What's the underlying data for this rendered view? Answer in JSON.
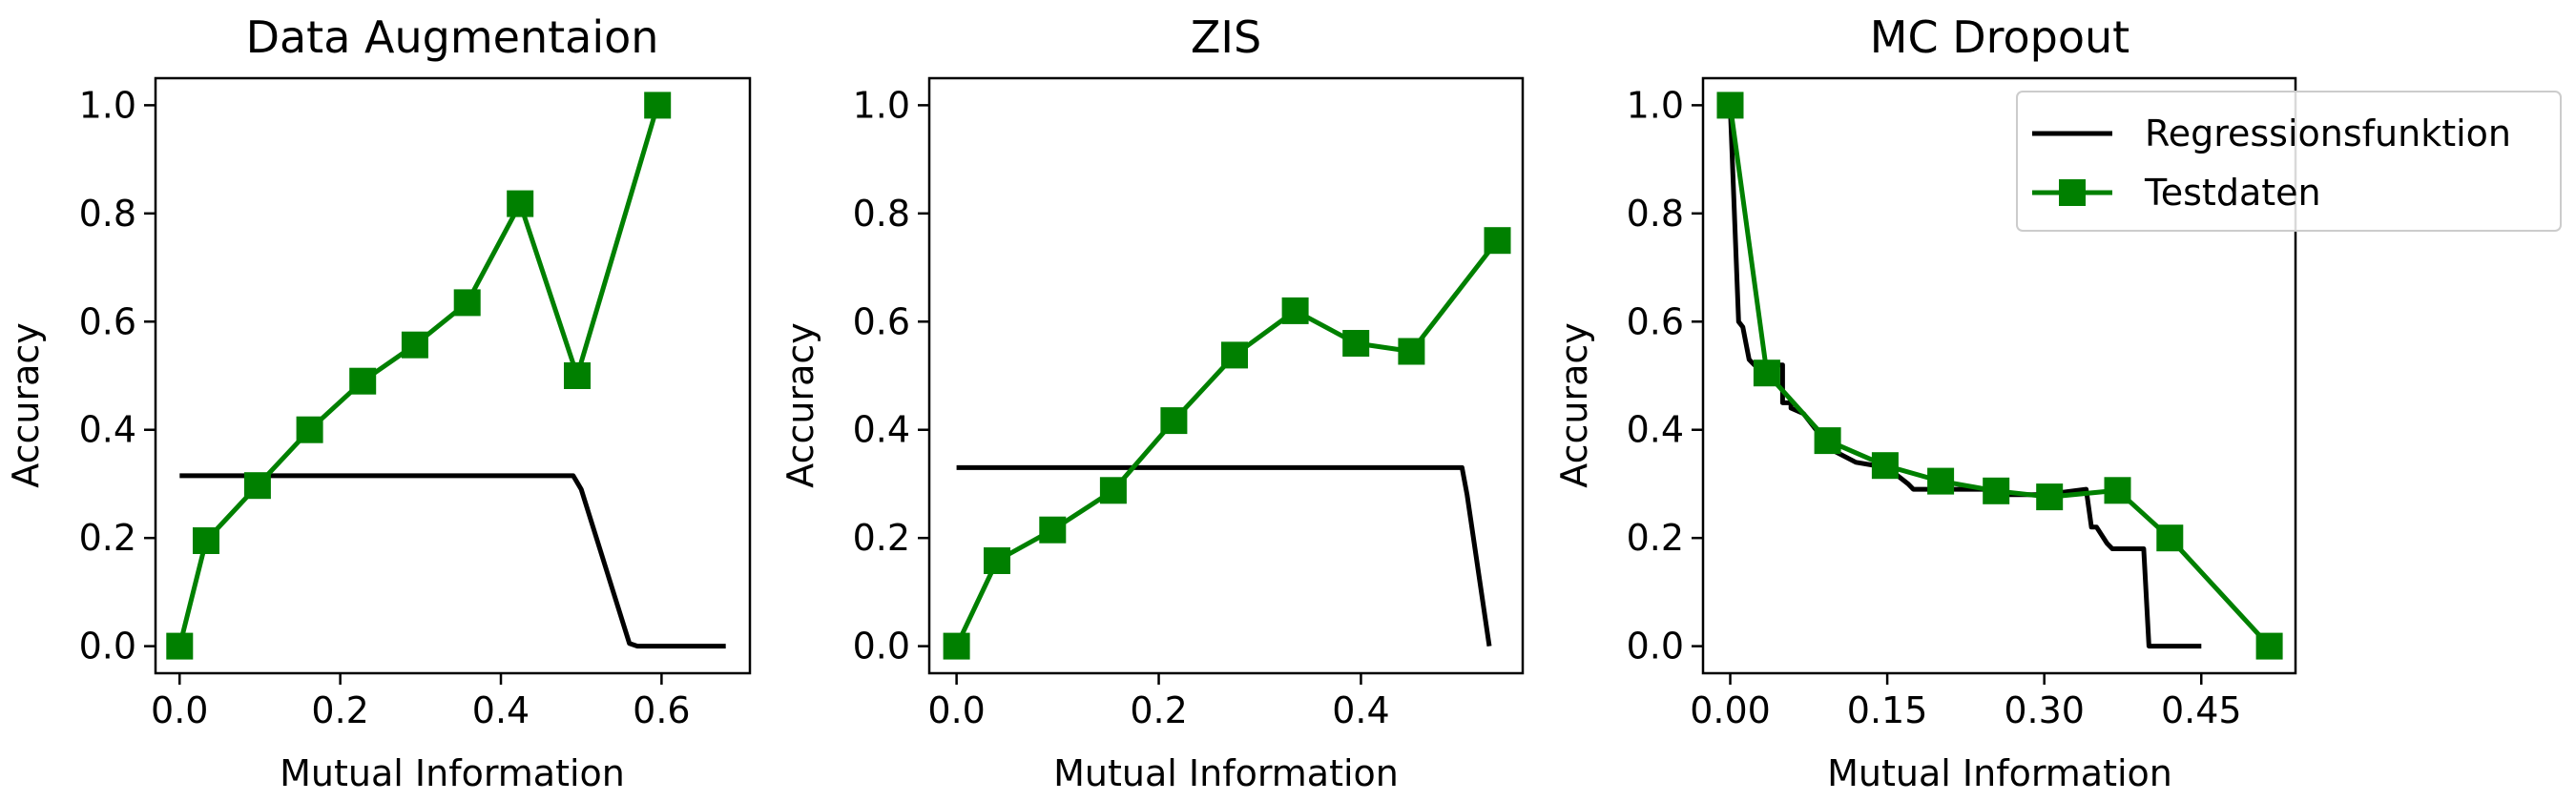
{
  "chart_data": [
    {
      "type": "line",
      "title": "Data Augmentaion",
      "xlabel": "Mutual Information",
      "ylabel": "Accuracy",
      "xlim": [
        -0.03,
        0.71
      ],
      "ylim": [
        -0.05,
        1.05
      ],
      "xticks": [
        0.0,
        0.2,
        0.4,
        0.6
      ],
      "xtick_labels": [
        "0.0",
        "0.2",
        "0.4",
        "0.6"
      ],
      "yticks": [
        0.0,
        0.2,
        0.4,
        0.6,
        0.8,
        1.0
      ],
      "ytick_labels": [
        "0.0",
        "0.2",
        "0.4",
        "0.6",
        "0.8",
        "1.0"
      ],
      "series": [
        {
          "name": "Regressionsfunktion",
          "color": "#000000",
          "marker": "none",
          "x": [
            0.0,
            0.49,
            0.5,
            0.56,
            0.57,
            0.68
          ],
          "y": [
            0.315,
            0.315,
            0.29,
            0.005,
            0.0,
            0.0
          ]
        },
        {
          "name": "Testdaten",
          "color": "#008000",
          "marker": "square",
          "x": [
            0.0,
            0.033,
            0.097,
            0.162,
            0.228,
            0.293,
            0.358,
            0.424,
            0.495,
            0.595
          ],
          "y": [
            0.0,
            0.195,
            0.297,
            0.4,
            0.49,
            0.557,
            0.635,
            0.818,
            0.5,
            1.0
          ]
        }
      ]
    },
    {
      "type": "line",
      "title": "ZIS",
      "xlabel": "Mutual Information",
      "ylabel": "Accuracy",
      "xlim": [
        -0.027,
        0.56
      ],
      "ylim": [
        -0.05,
        1.05
      ],
      "xticks": [
        0.0,
        0.2,
        0.4
      ],
      "xtick_labels": [
        "0.0",
        "0.2",
        "0.4"
      ],
      "yticks": [
        0.0,
        0.2,
        0.4,
        0.6,
        0.8,
        1.0
      ],
      "ytick_labels": [
        "0.0",
        "0.2",
        "0.4",
        "0.6",
        "0.8",
        "1.0"
      ],
      "series": [
        {
          "name": "Regressionsfunktion",
          "color": "#000000",
          "marker": "none",
          "x": [
            0.0,
            0.5,
            0.505,
            0.527
          ],
          "y": [
            0.33,
            0.33,
            0.28,
            0.0
          ]
        },
        {
          "name": "Testdaten",
          "color": "#008000",
          "marker": "square",
          "x": [
            0.0,
            0.04,
            0.095,
            0.155,
            0.215,
            0.275,
            0.335,
            0.395,
            0.45,
            0.535
          ],
          "y": [
            0.0,
            0.158,
            0.215,
            0.288,
            0.417,
            0.538,
            0.62,
            0.56,
            0.545,
            0.75
          ]
        }
      ]
    },
    {
      "type": "line",
      "title": "MC Dropout",
      "xlabel": "Mutual Information",
      "ylabel": "Accuracy",
      "xlim": [
        -0.026,
        0.54
      ],
      "ylim": [
        -0.05,
        1.05
      ],
      "xticks": [
        0.0,
        0.15,
        0.3,
        0.45
      ],
      "xtick_labels": [
        "0.00",
        "0.15",
        "0.30",
        "0.45"
      ],
      "yticks": [
        0.0,
        0.2,
        0.4,
        0.6,
        0.8,
        1.0
      ],
      "ytick_labels": [
        "0.0",
        "0.2",
        "0.4",
        "0.6",
        "0.8",
        "1.0"
      ],
      "legend": {
        "position": "upper-right",
        "entries": [
          "Regressionsfunktion",
          "Testdaten"
        ]
      },
      "series": [
        {
          "name": "Regressionsfunktion",
          "color": "#000000",
          "marker": "none",
          "x": [
            0.0,
            0.008,
            0.008,
            0.012,
            0.015,
            0.018,
            0.023,
            0.03,
            0.03,
            0.05,
            0.05,
            0.058,
            0.058,
            0.07,
            0.09,
            0.1,
            0.12,
            0.15,
            0.17,
            0.175,
            0.25,
            0.26,
            0.3,
            0.34,
            0.345,
            0.35,
            0.36,
            0.365,
            0.395,
            0.4,
            0.45
          ],
          "y": [
            1.0,
            0.6,
            0.6,
            0.59,
            0.56,
            0.53,
            0.52,
            0.52,
            0.52,
            0.52,
            0.45,
            0.45,
            0.44,
            0.43,
            0.38,
            0.36,
            0.34,
            0.33,
            0.3,
            0.29,
            0.29,
            0.28,
            0.28,
            0.29,
            0.22,
            0.22,
            0.19,
            0.18,
            0.18,
            0.0,
            0.0
          ]
        },
        {
          "name": "Testdaten",
          "color": "#008000",
          "marker": "square",
          "x": [
            0.0,
            0.035,
            0.093,
            0.148,
            0.201,
            0.254,
            0.305,
            0.37,
            0.42,
            0.515
          ],
          "y": [
            1.0,
            0.505,
            0.38,
            0.334,
            0.305,
            0.287,
            0.276,
            0.288,
            0.2,
            0.0
          ]
        }
      ]
    }
  ]
}
